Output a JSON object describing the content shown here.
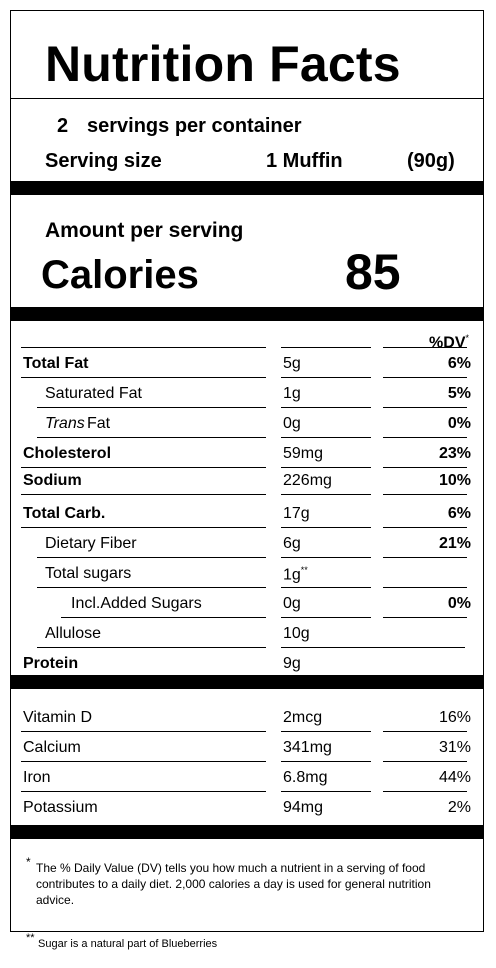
{
  "title": "Nutrition Facts",
  "servings": {
    "count": "2",
    "text": "servings per container"
  },
  "serving_size": {
    "label": "Serving size",
    "value": "1 Muffin",
    "grams": "(90g)"
  },
  "amount_label": "Amount per serving",
  "calories": {
    "label": "Calories",
    "value": "85"
  },
  "dv_header": "%DV",
  "dv_header_mark": "*",
  "nutrients": [
    {
      "name": "Total Fat",
      "amount": "5g",
      "dv": "6%"
    },
    {
      "name": "Saturated Fat",
      "amount": "1g",
      "dv": "5%"
    },
    {
      "name": "Trans",
      "name_suffix": " Fat",
      "amount": "0g",
      "dv": "0%"
    },
    {
      "name": "Cholesterol",
      "amount": "59mg",
      "dv": "23%"
    },
    {
      "name": "Sodium",
      "amount": "226mg",
      "dv": "10%"
    },
    {
      "name": "Total Carb.",
      "amount": "17g",
      "dv": "6%"
    },
    {
      "name": "Dietary Fiber",
      "amount": "6g",
      "dv": "21%"
    },
    {
      "name": "Total sugars",
      "amount": "1g",
      "amount_mark": "**",
      "dv": ""
    },
    {
      "name": "Incl.Added Sugars",
      "amount": "0g",
      "dv": "0%"
    },
    {
      "name": "Allulose",
      "amount": "10g",
      "dv": ""
    },
    {
      "name": "Protein",
      "amount": "9g",
      "dv": ""
    }
  ],
  "vitamins": [
    {
      "name": "Vitamin D",
      "amount": "2mcg",
      "dv": "16%"
    },
    {
      "name": "Calcium",
      "amount": "341mg",
      "dv": "31%"
    },
    {
      "name": "Iron",
      "amount": "6.8mg",
      "dv": "44%"
    },
    {
      "name": "Potassium",
      "amount": "94mg",
      "dv": "2%"
    }
  ],
  "footnote1": {
    "mark": "*",
    "text": "The % Daily Value (DV) tells you how much a nutrient in a serving of food contributes to a daily diet. 2,000 calories a day is used for general nutrition advice."
  },
  "footnote2": {
    "mark": "**",
    "text": "Sugar is a natural part of Blueberries"
  }
}
